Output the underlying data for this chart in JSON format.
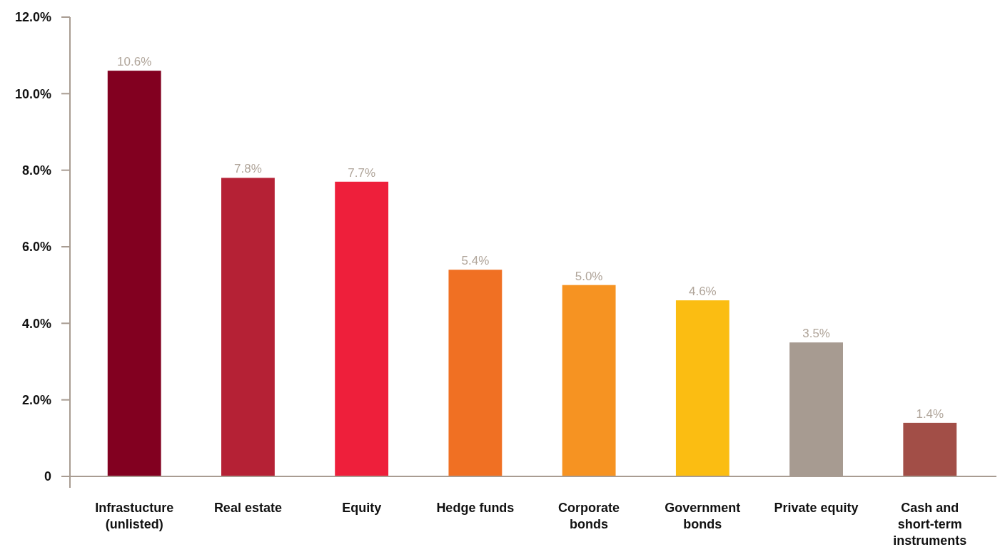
{
  "chart_data": {
    "type": "bar",
    "categories": [
      "Infrastucture (unlisted)",
      "Real estate",
      "Equity",
      "Hedge funds",
      "Corporate bonds",
      "Government bonds",
      "Private equity",
      "Cash and short-term instruments"
    ],
    "values": [
      10.6,
      7.8,
      7.7,
      5.4,
      5.0,
      4.6,
      3.5,
      1.4
    ],
    "colors": [
      "#820020",
      "#b52135",
      "#ee1f3b",
      "#f07023",
      "#f69322",
      "#fbbd12",
      "#a79b91",
      "#a24e47"
    ],
    "value_labels": [
      "10.6%",
      "7.8%",
      "7.7%",
      "5.4%",
      "5.0%",
      "4.6%",
      "3.5%",
      "1.4%"
    ],
    "ylim": [
      0,
      12
    ],
    "yticks": [
      {
        "value": 0,
        "label": "0"
      },
      {
        "value": 2,
        "label": "2.0%"
      },
      {
        "value": 4,
        "label": "4.0%"
      },
      {
        "value": 6,
        "label": "6.0%"
      },
      {
        "value": 8,
        "label": "8.0%"
      },
      {
        "value": 10,
        "label": "10.0%"
      },
      {
        "value": 12,
        "label": "12.0%"
      }
    ],
    "grid": false
  }
}
